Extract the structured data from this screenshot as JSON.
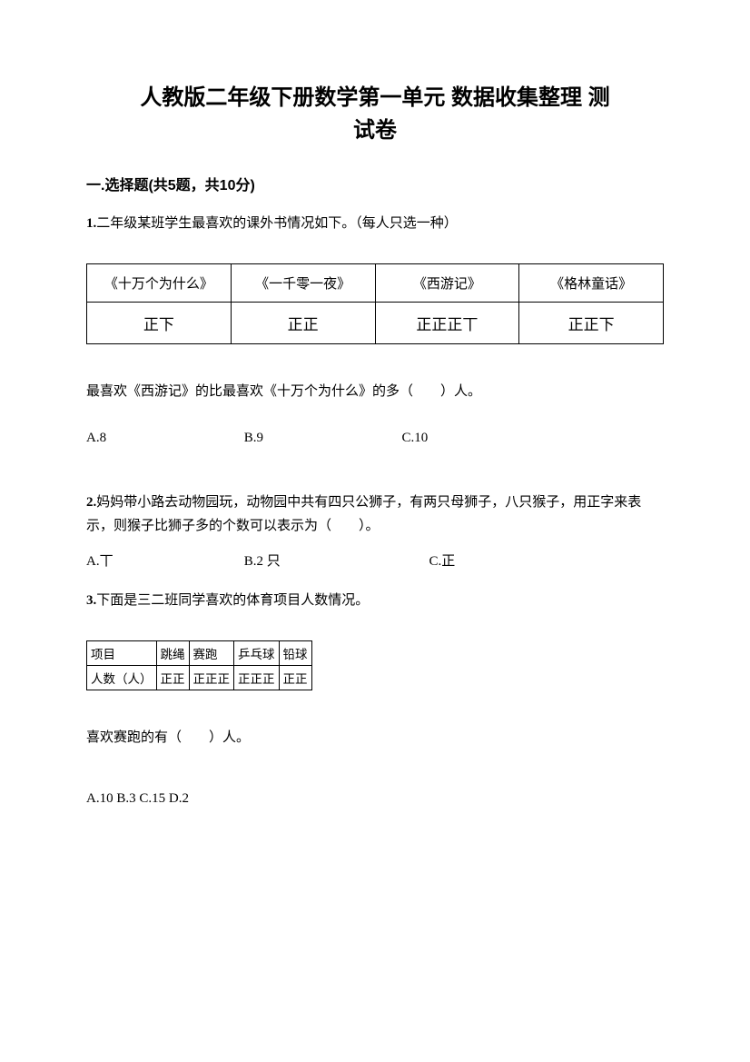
{
  "title_line1": "人教版二年级下册数学第一单元 数据收集整理 测",
  "title_line2": "试卷",
  "section1": "一.选择题(共5题，共10分)",
  "q1": {
    "num": "1.",
    "text": "二年级某班学生最喜欢的课外书情况如下。（每人只选一种）",
    "table_headers": [
      "《十万个为什么》",
      "《一千零一夜》",
      "《西游记》",
      "《格林童话》"
    ],
    "table_tallies": [
      "正下",
      "正正",
      "正正正丅",
      "正正下"
    ],
    "sub": "最喜欢《西游记》的比最喜欢《十万个为什么》的多（　　）人。",
    "opts": {
      "a": "A.8",
      "b": "B.9",
      "c": "C.10"
    },
    "opt_widths": {
      "a": "170px",
      "b": "170px",
      "c": "auto"
    }
  },
  "q2": {
    "num": "2.",
    "text": "妈妈带小路去动物园玩，动物园中共有四只公狮子，有两只母狮子，八只猴子，用正字来表示，则猴子比狮子多的个数可以表示为（　　）。",
    "opts": {
      "a": "A.丅",
      "b": "B.2 只",
      "c": "C.正"
    },
    "opt_widths": {
      "a": "170px",
      "b": "200px",
      "c": "auto"
    }
  },
  "q3": {
    "num": "3.",
    "text": "下面是三二班同学喜欢的体育项目人数情况。",
    "table_row1": [
      "项目",
      "跳绳",
      "赛跑",
      "乒乓球",
      "铅球"
    ],
    "table_row2": [
      "人数（人）",
      "正正",
      "正正正",
      "正正正",
      "正正"
    ],
    "sub": "喜欢赛跑的有（　　）人。",
    "opts": {
      "a": "A.10",
      "b": "B.3",
      "c": "C.15",
      "d": "D.2"
    },
    "opt_widths": {
      "a": "140px",
      "b": "140px",
      "c": "150px",
      "d": "auto"
    }
  }
}
